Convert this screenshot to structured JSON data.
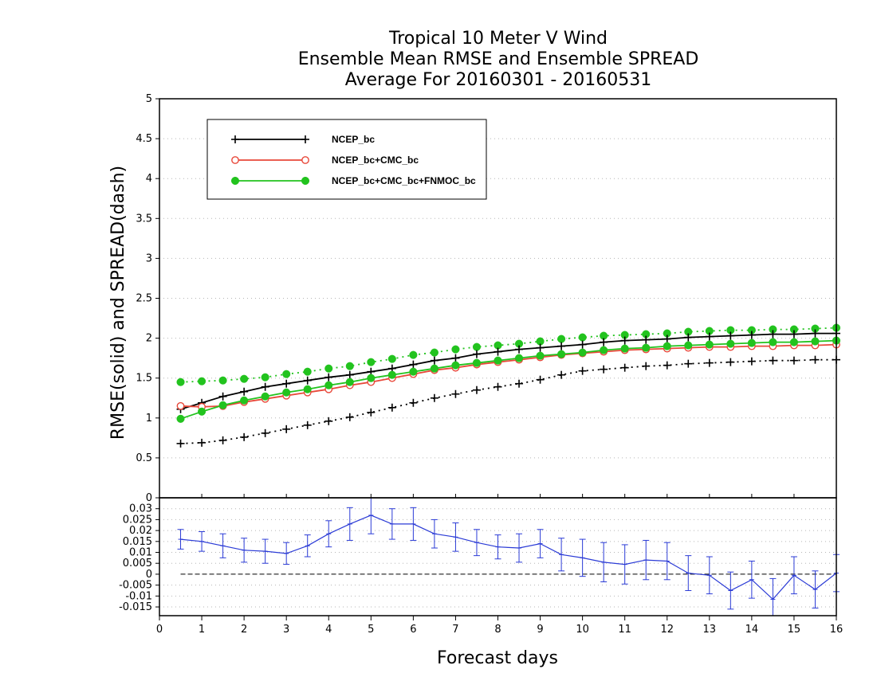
{
  "chart_data": [
    {
      "type": "line",
      "title_lines": [
        "Tropical 10 Meter V Wind",
        "Ensemble Mean RMSE and Ensemble SPREAD",
        "Average For 20160301 - 20160531"
      ],
      "ylabel": "RMSE(solid) and SPREAD(dash)",
      "xlim": [
        0,
        16
      ],
      "ylim": [
        0,
        5
      ],
      "y_ticks": [
        "0",
        "0.5",
        "1",
        "1.5",
        "2",
        "2.5",
        "3",
        "3.5",
        "4",
        "4.5",
        "5"
      ],
      "grid": true,
      "legend_position": "top-left",
      "x": [
        0.5,
        1,
        1.5,
        2,
        2.5,
        3,
        3.5,
        4,
        4.5,
        5,
        5.5,
        6,
        6.5,
        7,
        7.5,
        8,
        8.5,
        9,
        9.5,
        10,
        10.5,
        11,
        11.5,
        12,
        12.5,
        13,
        13.5,
        14,
        14.5,
        15,
        15.5,
        16
      ],
      "series": [
        {
          "name": "NCEP_bc",
          "color": "#000000",
          "marker": "plus",
          "rmse": [
            1.11,
            1.19,
            1.27,
            1.33,
            1.39,
            1.43,
            1.47,
            1.51,
            1.54,
            1.58,
            1.62,
            1.67,
            1.72,
            1.75,
            1.8,
            1.83,
            1.86,
            1.88,
            1.9,
            1.92,
            1.95,
            1.97,
            1.98,
            1.99,
            2.01,
            2.02,
            2.03,
            2.04,
            2.05,
            2.05,
            2.06,
            2.06
          ],
          "spread": [
            0.68,
            0.69,
            0.72,
            0.76,
            0.81,
            0.86,
            0.91,
            0.96,
            1.01,
            1.07,
            1.13,
            1.19,
            1.25,
            1.3,
            1.35,
            1.39,
            1.43,
            1.48,
            1.54,
            1.59,
            1.61,
            1.63,
            1.65,
            1.66,
            1.68,
            1.69,
            1.7,
            1.71,
            1.72,
            1.72,
            1.73,
            1.73
          ]
        },
        {
          "name": "NCEP_bc+CMC_bc",
          "color": "#e8483a",
          "marker": "open-circle",
          "rmse": [
            1.15,
            1.14,
            1.15,
            1.2,
            1.24,
            1.28,
            1.32,
            1.36,
            1.41,
            1.45,
            1.5,
            1.55,
            1.6,
            1.63,
            1.67,
            1.7,
            1.73,
            1.76,
            1.79,
            1.81,
            1.83,
            1.85,
            1.86,
            1.87,
            1.88,
            1.89,
            1.89,
            1.9,
            1.9,
            1.91,
            1.91,
            1.92
          ],
          "spread": []
        },
        {
          "name": "NCEP_bc+CMC_bc+FNMOC_bc",
          "color": "#22c31e",
          "marker": "filled-circle",
          "rmse": [
            0.99,
            1.08,
            1.16,
            1.22,
            1.27,
            1.32,
            1.36,
            1.41,
            1.45,
            1.5,
            1.54,
            1.58,
            1.62,
            1.66,
            1.69,
            1.72,
            1.75,
            1.78,
            1.8,
            1.82,
            1.85,
            1.87,
            1.88,
            1.9,
            1.91,
            1.92,
            1.93,
            1.94,
            1.95,
            1.95,
            1.96,
            1.97
          ],
          "spread": [
            1.45,
            1.46,
            1.47,
            1.49,
            1.51,
            1.55,
            1.58,
            1.62,
            1.65,
            1.7,
            1.74,
            1.79,
            1.82,
            1.86,
            1.89,
            1.91,
            1.93,
            1.96,
            1.99,
            2.01,
            2.03,
            2.04,
            2.05,
            2.06,
            2.08,
            2.09,
            2.1,
            2.1,
            2.11,
            2.11,
            2.12,
            2.13
          ]
        }
      ]
    },
    {
      "type": "line",
      "xlabel": "Forecast days",
      "xlim": [
        0,
        16
      ],
      "x_ticks": [
        "0",
        "1",
        "2",
        "3",
        "4",
        "5",
        "6",
        "7",
        "8",
        "9",
        "10",
        "11",
        "12",
        "13",
        "14",
        "15",
        "16"
      ],
      "ylim": [
        -0.019,
        0.035
      ],
      "y_ticks": [
        "-0.015",
        "-0.01",
        "-0.005",
        "0",
        "0.005",
        "0.01",
        "0.015",
        "0.02",
        "0.025",
        "0.03"
      ],
      "grid": true,
      "series": [
        {
          "color": "#2b3bd6",
          "marker": "error-bar",
          "x": [
            0.5,
            1,
            1.5,
            2,
            2.5,
            3,
            3.5,
            4,
            4.5,
            5,
            5.5,
            6,
            6.5,
            7,
            7.5,
            8,
            8.5,
            9,
            9.5,
            10,
            10.5,
            11,
            11.5,
            12,
            12.5,
            13,
            13.5,
            14,
            14.5,
            15,
            15.5,
            16
          ],
          "values": [
            0.016,
            0.015,
            0.013,
            0.011,
            0.0105,
            0.0095,
            0.013,
            0.0185,
            0.023,
            0.027,
            0.023,
            0.023,
            0.0185,
            0.017,
            0.0145,
            0.0125,
            0.012,
            0.014,
            0.009,
            0.0075,
            0.0055,
            0.0045,
            0.0065,
            0.006,
            0.0005,
            -0.0005,
            -0.0075,
            -0.0025,
            -0.0115,
            -0.0005,
            -0.007,
            0.0005
          ],
          "error": [
            0.0045,
            0.0045,
            0.0055,
            0.0055,
            0.0055,
            0.005,
            0.005,
            0.006,
            0.0075,
            0.0085,
            0.007,
            0.0075,
            0.0065,
            0.0065,
            0.006,
            0.0055,
            0.0065,
            0.0065,
            0.0075,
            0.0085,
            0.009,
            0.009,
            0.009,
            0.0085,
            0.008,
            0.0085,
            0.0085,
            0.0085,
            0.0095,
            0.0085,
            0.0085,
            0.0085
          ]
        }
      ]
    }
  ]
}
